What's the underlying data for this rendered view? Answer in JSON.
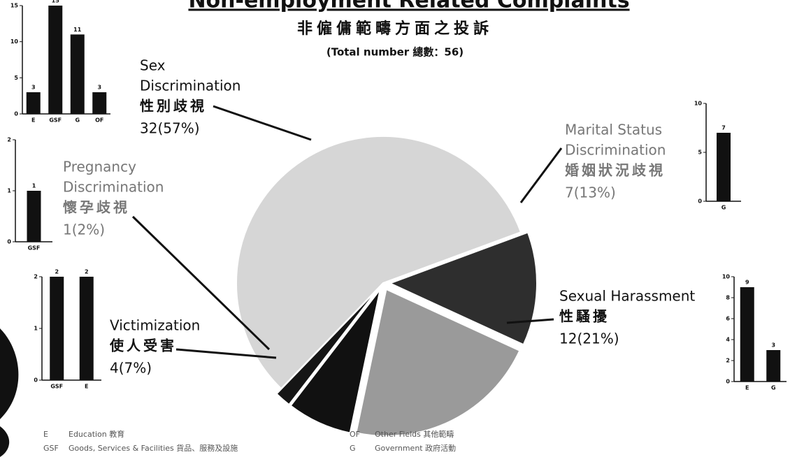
{
  "chart_data": [
    {
      "type": "pie",
      "title": "Non-employment Related Complaints",
      "subtitle": "非僱傭範疇方面之投訴",
      "note": "(Total number 總數：56)",
      "categories": [
        [
          "Sex",
          "Discrimination"
        ],
        [
          "Marital Status",
          "Discrimination"
        ],
        [
          "Sexual Harassment"
        ],
        [
          "Victimization"
        ],
        [
          "Pregnancy",
          "Discrimination"
        ]
      ],
      "categories_zh": [
        "性別歧視",
        "婚姻狀況歧視",
        "性騷擾",
        "使人受害",
        "懷孕歧視"
      ],
      "values": [
        32,
        7,
        12,
        4,
        1
      ],
      "value_labels": [
        "32(57%)",
        "7(13%)",
        "12(21%)",
        "4(7%)",
        "1(2%)"
      ],
      "colors": [
        "#d6d6d6",
        "#2e2e2e",
        "#9a9a9a",
        "#111111",
        "#151515"
      ]
    },
    {
      "type": "bar",
      "categories": [
        "E",
        "GSF",
        "G",
        "OF"
      ],
      "values": [
        3,
        15,
        11,
        3
      ],
      "ylim": [
        0,
        15
      ],
      "yticks": [
        0,
        5,
        10,
        15
      ],
      "color": "#111111"
    },
    {
      "type": "bar",
      "categories": [
        "G"
      ],
      "values": [
        7
      ],
      "ylim": [
        0,
        10
      ],
      "yticks": [
        0,
        5,
        10
      ],
      "color": "#111111"
    },
    {
      "type": "bar",
      "categories": [
        "E",
        "G"
      ],
      "values": [
        9,
        3
      ],
      "ylim": [
        0,
        10
      ],
      "yticks": [
        0,
        2,
        4,
        6,
        8,
        10
      ],
      "color": "#111111"
    },
    {
      "type": "bar",
      "categories": [
        "GSF",
        "E"
      ],
      "values": [
        2,
        2
      ],
      "ylim": [
        0,
        2
      ],
      "yticks": [
        0,
        1,
        2
      ],
      "color": "#111111"
    },
    {
      "type": "bar",
      "categories": [
        "GSF"
      ],
      "values": [
        1
      ],
      "ylim": [
        0,
        2
      ],
      "yticks": [
        0,
        1,
        2
      ],
      "color": "#111111"
    }
  ],
  "key": [
    {
      "code": "E",
      "text": "Education 教育"
    },
    {
      "code": "GSF",
      "text": "Goods, Services & Facilities 貨品、服務及設施"
    },
    {
      "code": "OF",
      "text": "Other Fields 其他範疇"
    },
    {
      "code": "G",
      "text": "Government 政府活動"
    }
  ]
}
